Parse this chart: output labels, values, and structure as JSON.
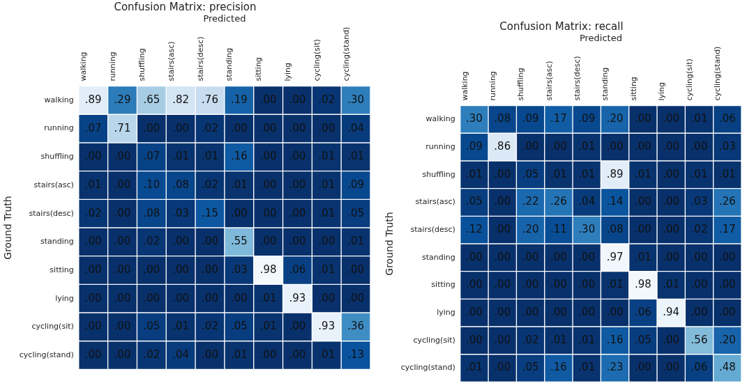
{
  "chart_data": [
    {
      "type": "heatmap",
      "title": "Confusion Matrix: precision",
      "xlabel": "Predicted",
      "ylabel": "Ground Truth",
      "categories": [
        "walking",
        "running",
        "shuffling",
        "stairs(asc)",
        "stairs(desc)",
        "standing",
        "sitting",
        "lying",
        "cycling(sit)",
        "cycling(stand)"
      ],
      "y_categories": [
        "walking",
        "running",
        "shuffling",
        "stairs(asc)",
        "stairs(desc)",
        "standing",
        "sitting",
        "lying",
        "cycling(sit)",
        "cycling(stand)"
      ],
      "cells": [
        [
          0.89,
          0.29,
          0.65,
          0.82,
          0.76,
          0.19,
          0.0,
          0.0,
          0.02,
          0.3
        ],
        [
          0.07,
          0.71,
          0.0,
          0.0,
          0.02,
          0.0,
          0.0,
          0.0,
          0.0,
          0.04
        ],
        [
          0.0,
          0.0,
          0.07,
          0.01,
          0.01,
          0.16,
          0.0,
          0.0,
          0.01,
          0.01
        ],
        [
          0.01,
          0.0,
          0.1,
          0.08,
          0.02,
          0.01,
          0.0,
          0.0,
          0.01,
          0.09
        ],
        [
          0.02,
          0.0,
          0.08,
          0.03,
          0.15,
          0.0,
          0.0,
          0.0,
          0.01,
          0.05
        ],
        [
          0.0,
          0.0,
          0.02,
          0.0,
          0.0,
          0.55,
          0.0,
          0.0,
          0.0,
          0.01
        ],
        [
          0.0,
          0.0,
          0.0,
          0.0,
          0.0,
          0.03,
          0.98,
          0.06,
          0.01,
          0.0
        ],
        [
          0.0,
          0.0,
          0.0,
          0.0,
          0.0,
          0.0,
          0.01,
          0.93,
          0.0,
          0.0
        ],
        [
          0.0,
          0.0,
          0.05,
          0.01,
          0.02,
          0.05,
          0.01,
          0.0,
          0.93,
          0.36
        ],
        [
          0.0,
          0.0,
          0.02,
          0.04,
          0.0,
          0.01,
          0.0,
          0.0,
          0.01,
          0.13
        ]
      ],
      "cell_labels": [
        [
          ".89",
          ".29",
          ".65",
          ".82",
          ".76",
          ".19",
          ".00",
          ".00",
          ".02",
          ".30"
        ],
        [
          ".07",
          ".71",
          ".00",
          ".00",
          ".02",
          ".00",
          ".00",
          ".00",
          ".00",
          ".04"
        ],
        [
          ".00",
          ".00",
          ".07",
          ".01",
          ".01",
          ".16",
          ".00",
          ".00",
          ".01",
          ".01"
        ],
        [
          ".01",
          ".00",
          ".10",
          ".08",
          ".02",
          ".01",
          ".00",
          ".00",
          ".01",
          ".09"
        ],
        [
          ".02",
          ".00",
          ".08",
          ".03",
          ".15",
          ".00",
          ".00",
          ".00",
          ".01",
          ".05"
        ],
        [
          ".00",
          ".00",
          ".02",
          ".00",
          ".00",
          ".55",
          ".00",
          ".00",
          ".00",
          ".01"
        ],
        [
          ".00",
          ".00",
          ".00",
          ".00",
          ".00",
          ".03",
          ".98",
          ".06",
          ".01",
          ".00"
        ],
        [
          ".00",
          ".00",
          ".00",
          ".00",
          ".00",
          ".00",
          ".01",
          ".93",
          ".00",
          ".00"
        ],
        [
          ".00",
          ".00",
          ".05",
          ".01",
          ".02",
          ".05",
          ".01",
          ".00",
          ".93",
          ".36"
        ],
        [
          ".00",
          ".00",
          ".02",
          ".04",
          ".00",
          ".01",
          ".00",
          ".00",
          ".01",
          ".13"
        ]
      ]
    },
    {
      "type": "heatmap",
      "title": "Confusion Matrix: recall",
      "xlabel": "Predicted",
      "ylabel": "Ground Truth",
      "categories": [
        "walking",
        "running",
        "shuffling",
        "stairs(asc)",
        "stairs(desc)",
        "standing",
        "sitting",
        "lying",
        "cycling(sit)",
        "cycling(stand)"
      ],
      "y_categories": [
        "walking",
        "running",
        "shuffling",
        "stairs(asc)",
        "stairs(desc)",
        "standing",
        "sitting",
        "lying",
        "cycling(sit)",
        "cycling(stand)"
      ],
      "cells": [
        [
          0.3,
          0.08,
          0.09,
          0.17,
          0.09,
          0.2,
          0.0,
          0.0,
          0.01,
          0.06
        ],
        [
          0.09,
          0.86,
          0.0,
          0.0,
          0.01,
          0.0,
          0.0,
          0.0,
          0.0,
          0.03
        ],
        [
          0.01,
          0.0,
          0.05,
          0.01,
          0.01,
          0.89,
          0.01,
          0.0,
          0.01,
          0.01
        ],
        [
          0.05,
          0.0,
          0.22,
          0.26,
          0.04,
          0.14,
          0.0,
          0.0,
          0.03,
          0.26
        ],
        [
          0.12,
          0.0,
          0.2,
          0.11,
          0.3,
          0.08,
          0.0,
          0.0,
          0.02,
          0.17
        ],
        [
          0.0,
          0.0,
          0.0,
          0.0,
          0.0,
          0.97,
          0.01,
          0.0,
          0.0,
          0.0
        ],
        [
          0.0,
          0.0,
          0.0,
          0.0,
          0.0,
          0.01,
          0.98,
          0.01,
          0.0,
          0.0
        ],
        [
          0.0,
          0.0,
          0.0,
          0.0,
          0.0,
          0.0,
          0.06,
          0.94,
          0.0,
          0.0
        ],
        [
          0.0,
          0.0,
          0.02,
          0.01,
          0.01,
          0.16,
          0.05,
          0.0,
          0.56,
          0.2
        ],
        [
          0.01,
          0.0,
          0.05,
          0.16,
          0.01,
          0.23,
          0.0,
          0.0,
          0.06,
          0.48
        ]
      ],
      "cell_labels": [
        [
          ".30",
          ".08",
          ".09",
          ".17",
          ".09",
          ".20",
          ".00",
          ".00",
          ".01",
          ".06"
        ],
        [
          ".09",
          ".86",
          ".00",
          ".00",
          ".01",
          ".00",
          ".00",
          ".00",
          ".00",
          ".03"
        ],
        [
          ".01",
          ".00",
          ".05",
          ".01",
          ".01",
          ".89",
          ".01",
          ".00",
          ".01",
          ".01"
        ],
        [
          ".05",
          ".00",
          ".22",
          ".26",
          ".04",
          ".14",
          ".00",
          ".00",
          ".03",
          ".26"
        ],
        [
          ".12",
          ".00",
          ".20",
          ".11",
          ".30",
          ".08",
          ".00",
          ".00",
          ".02",
          ".17"
        ],
        [
          ".00",
          ".00",
          ".00",
          ".00",
          ".00",
          ".97",
          ".01",
          ".00",
          ".00",
          ".00"
        ],
        [
          ".00",
          ".00",
          ".00",
          ".00",
          ".00",
          ".01",
          ".98",
          ".01",
          ".00",
          ".00"
        ],
        [
          ".00",
          ".00",
          ".00",
          ".00",
          ".00",
          ".00",
          ".06",
          ".94",
          ".00",
          ".00"
        ],
        [
          ".00",
          ".00",
          ".02",
          ".01",
          ".01",
          ".16",
          ".05",
          ".00",
          ".56",
          ".20"
        ],
        [
          ".01",
          ".00",
          ".05",
          ".16",
          ".01",
          ".23",
          ".00",
          ".00",
          ".06",
          ".48"
        ]
      ]
    }
  ]
}
